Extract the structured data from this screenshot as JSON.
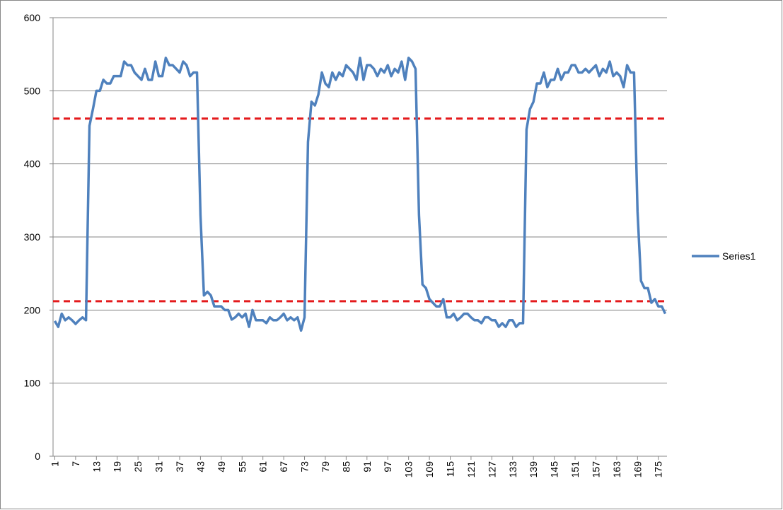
{
  "chart_data": {
    "type": "line",
    "categories": [
      1,
      null,
      null,
      null,
      null,
      null,
      7,
      null,
      null,
      null,
      null,
      null,
      13,
      null,
      null,
      null,
      null,
      null,
      19,
      null,
      null,
      null,
      null,
      null,
      25,
      null,
      null,
      null,
      null,
      null,
      31,
      null,
      null,
      null,
      null,
      null,
      37,
      null,
      null,
      null,
      null,
      null,
      43,
      null,
      null,
      null,
      null,
      null,
      49,
      null,
      null,
      null,
      null,
      null,
      55,
      null,
      null,
      null,
      null,
      null,
      61,
      null,
      null,
      null,
      null,
      null,
      67,
      null,
      null,
      null,
      null,
      null,
      73,
      null,
      null,
      null,
      null,
      null,
      79,
      null,
      null,
      null,
      null,
      null,
      85,
      null,
      null,
      null,
      null,
      null,
      91,
      null,
      null,
      null,
      null,
      null,
      97,
      null,
      null,
      null,
      null,
      null,
      103,
      null,
      null,
      null,
      null,
      null,
      109,
      null,
      null,
      null,
      null,
      null,
      115,
      null,
      null,
      null,
      null,
      null,
      121,
      null,
      null,
      null,
      null,
      null,
      127,
      null,
      null,
      null,
      null,
      null,
      133,
      null,
      null,
      null,
      null,
      null,
      139,
      null,
      null,
      null,
      null,
      null,
      145,
      null,
      null,
      null,
      null,
      null,
      151,
      null,
      null,
      null,
      null,
      null,
      157,
      null,
      null,
      null,
      null,
      null,
      163,
      null,
      null,
      null,
      null,
      null,
      169,
      null,
      null,
      null,
      null,
      null,
      175,
      null,
      null
    ],
    "series": [
      {
        "name": "Series1",
        "color": "#4f81bd",
        "values": [
          185,
          177,
          195,
          186,
          190,
          186,
          181,
          186,
          190,
          186,
          452,
          475,
          500,
          500,
          515,
          510,
          510,
          520,
          520,
          520,
          540,
          535,
          535,
          525,
          520,
          515,
          530,
          515,
          515,
          540,
          520,
          520,
          545,
          535,
          535,
          530,
          525,
          540,
          535,
          520,
          525,
          525,
          330,
          220,
          225,
          220,
          205,
          205,
          205,
          200,
          200,
          187,
          190,
          195,
          190,
          195,
          177,
          200,
          186,
          186,
          186,
          182,
          190,
          186,
          186,
          190,
          195,
          186,
          190,
          186,
          190,
          172,
          190,
          430,
          485,
          480,
          495,
          525,
          510,
          505,
          525,
          515,
          525,
          520,
          535,
          530,
          525,
          515,
          545,
          515,
          535,
          535,
          530,
          520,
          530,
          525,
          535,
          520,
          530,
          525,
          540,
          515,
          545,
          540,
          530,
          330,
          235,
          230,
          215,
          210,
          205,
          205,
          215,
          190,
          190,
          195,
          186,
          190,
          195,
          195,
          190,
          186,
          186,
          182,
          190,
          190,
          186,
          186,
          177,
          182,
          177,
          186,
          186,
          177,
          182,
          182,
          447,
          475,
          485,
          510,
          510,
          525,
          505,
          515,
          515,
          530,
          515,
          525,
          525,
          535,
          535,
          525,
          525,
          530,
          525,
          530,
          535,
          520,
          530,
          525,
          540,
          520,
          525,
          520,
          505,
          535,
          525,
          525,
          335,
          240,
          230,
          230,
          210,
          215,
          205,
          205,
          195
        ]
      }
    ],
    "ylim": [
      0,
      600
    ],
    "yticks": [
      0,
      100,
      200,
      300,
      400,
      500,
      600
    ],
    "grid": true,
    "legend": "right",
    "reference_lines": [
      {
        "value": 462,
        "color": "#e41a1c",
        "dashed": true
      },
      {
        "value": 212,
        "color": "#e41a1c",
        "dashed": true
      }
    ]
  }
}
